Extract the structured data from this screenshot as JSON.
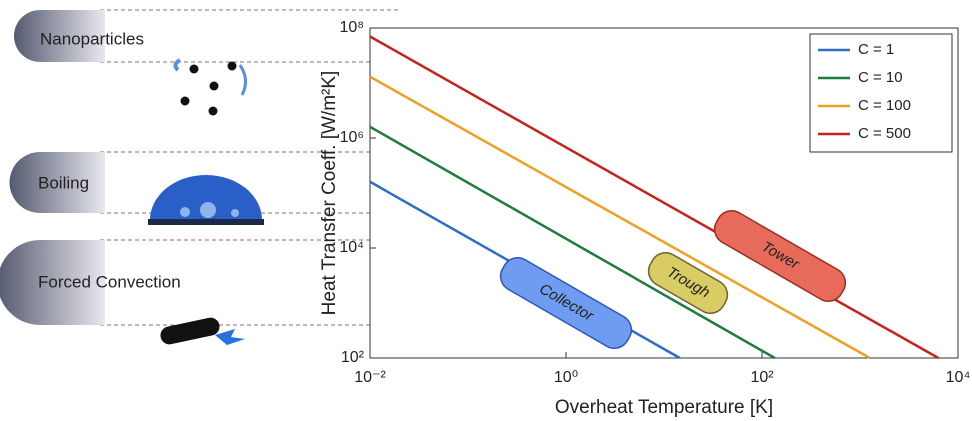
{
  "side_labels": [
    "Nanoparticles",
    "Boiling",
    "Forced Convection"
  ],
  "chart_data": {
    "type": "line",
    "x_label": "Overheat Temperature [K]",
    "y_label": "Heat Transfer Coeff. [W/m²K]",
    "log_x": true,
    "log_y": true,
    "grid": false,
    "legend": "upper right",
    "xlim": [
      0.01,
      10000
    ],
    "ylim": [
      100,
      100000000
    ],
    "xticks": [
      {
        "value": 0.01,
        "label": "10⁻²"
      },
      {
        "value": 1,
        "label": "10⁰"
      },
      {
        "value": 100,
        "label": "10²"
      },
      {
        "value": 10000,
        "label": "10⁴"
      }
    ],
    "yticks": [
      {
        "value": 100,
        "label": "10²"
      },
      {
        "value": 10000,
        "label": "10⁴"
      },
      {
        "value": 1000000,
        "label": "10⁶"
      },
      {
        "value": 100000000,
        "label": "10⁸"
      }
    ],
    "series": [
      {
        "name": "C = 1",
        "color": "#2c6fc4",
        "x": [
          0.01,
          14.5
        ],
        "values": [
          160000,
          100
        ]
      },
      {
        "name": "C = 10",
        "color": "#1d7d3c",
        "x": [
          0.01,
          135
        ],
        "values": [
          1600000,
          100
        ]
      },
      {
        "name": "C = 100",
        "color": "#f0a020",
        "x": [
          0.01,
          1260
        ],
        "values": [
          13000000,
          100
        ]
      },
      {
        "name": "C = 500",
        "color": "#c8231b",
        "x": [
          0.01,
          6300
        ],
        "values": [
          70000000,
          100
        ]
      }
    ],
    "annotations": [
      "Collector",
      "Trough",
      "Tower"
    ]
  }
}
